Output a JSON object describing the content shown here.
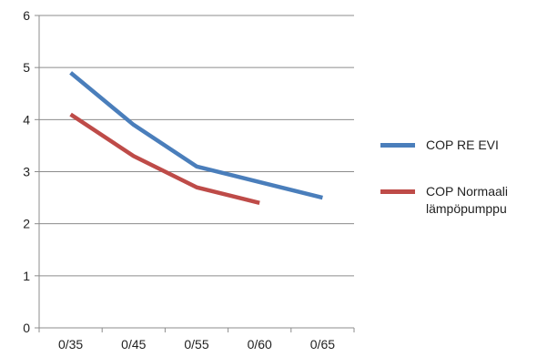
{
  "chart_data": {
    "type": "line",
    "title": "",
    "xlabel": "",
    "ylabel": "",
    "categories": [
      "0/35",
      "0/45",
      "0/55",
      "0/60",
      "0/65"
    ],
    "ylim": [
      0,
      6
    ],
    "yticks": [
      0,
      1,
      2,
      3,
      4,
      5,
      6
    ],
    "grid": "horizontal",
    "legend_position": "right",
    "series": [
      {
        "name": "COP RE EVI",
        "color": "#4a7ebb",
        "values": [
          4.9,
          3.9,
          3.1,
          2.8,
          2.5
        ]
      },
      {
        "name": "COP Normaali\nlämpöpumppu",
        "color": "#be4b48",
        "values": [
          4.1,
          3.3,
          2.7,
          2.4,
          null
        ]
      }
    ]
  }
}
